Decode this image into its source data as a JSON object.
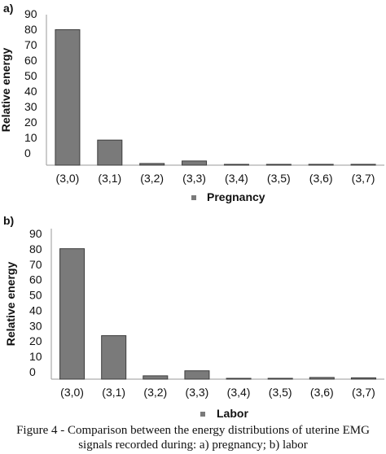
{
  "colors": {
    "bar_fill": "#7a7a7a",
    "bar_edge": "#3c3c3c",
    "axis": "#9a9a9a",
    "legend_marker": "#7a7a7a"
  },
  "chart_data": [
    {
      "type": "bar",
      "panel_label": "a)",
      "categories": [
        "(3,0)",
        "(3,1)",
        "(3,2)",
        "(3,3)",
        "(3,4)",
        "(3,5)",
        "(3,6)",
        "(3,7)"
      ],
      "series": [
        {
          "name": "Pregnancy",
          "values": [
            81,
            15,
            1,
            2.5,
            0.3,
            0.4,
            0.5,
            0.5
          ]
        }
      ],
      "yticks": [
        "0",
        "10",
        "20",
        "30",
        "40",
        "50",
        "60",
        "70",
        "80",
        "90"
      ],
      "ylabel": "Relative energy",
      "xlabel": "",
      "ylim": [
        0,
        90
      ],
      "grid": false,
      "legend": "bottom"
    },
    {
      "type": "bar",
      "panel_label": "b)",
      "categories": [
        "(3,0)",
        "(3,1)",
        "(3,2)",
        "(3,3)",
        "(3,4)",
        "(3,5)",
        "(3,6)",
        "(3,7)"
      ],
      "series": [
        {
          "name": "Labor",
          "values": [
            78,
            26,
            2,
            5,
            0.3,
            0.5,
            1,
            0.8
          ]
        }
      ],
      "yticks": [
        "0",
        "10",
        "20",
        "30",
        "40",
        "50",
        "60",
        "70",
        "80",
        "90"
      ],
      "ylabel": "Relative energy",
      "xlabel": "",
      "ylim": [
        0,
        90
      ],
      "grid": false,
      "legend": "bottom"
    }
  ],
  "caption": {
    "line1": "Figure 4 - Comparison between the energy distributions of uterine EMG",
    "line2": "signals recorded during: a) pregnancy; b) labor"
  }
}
